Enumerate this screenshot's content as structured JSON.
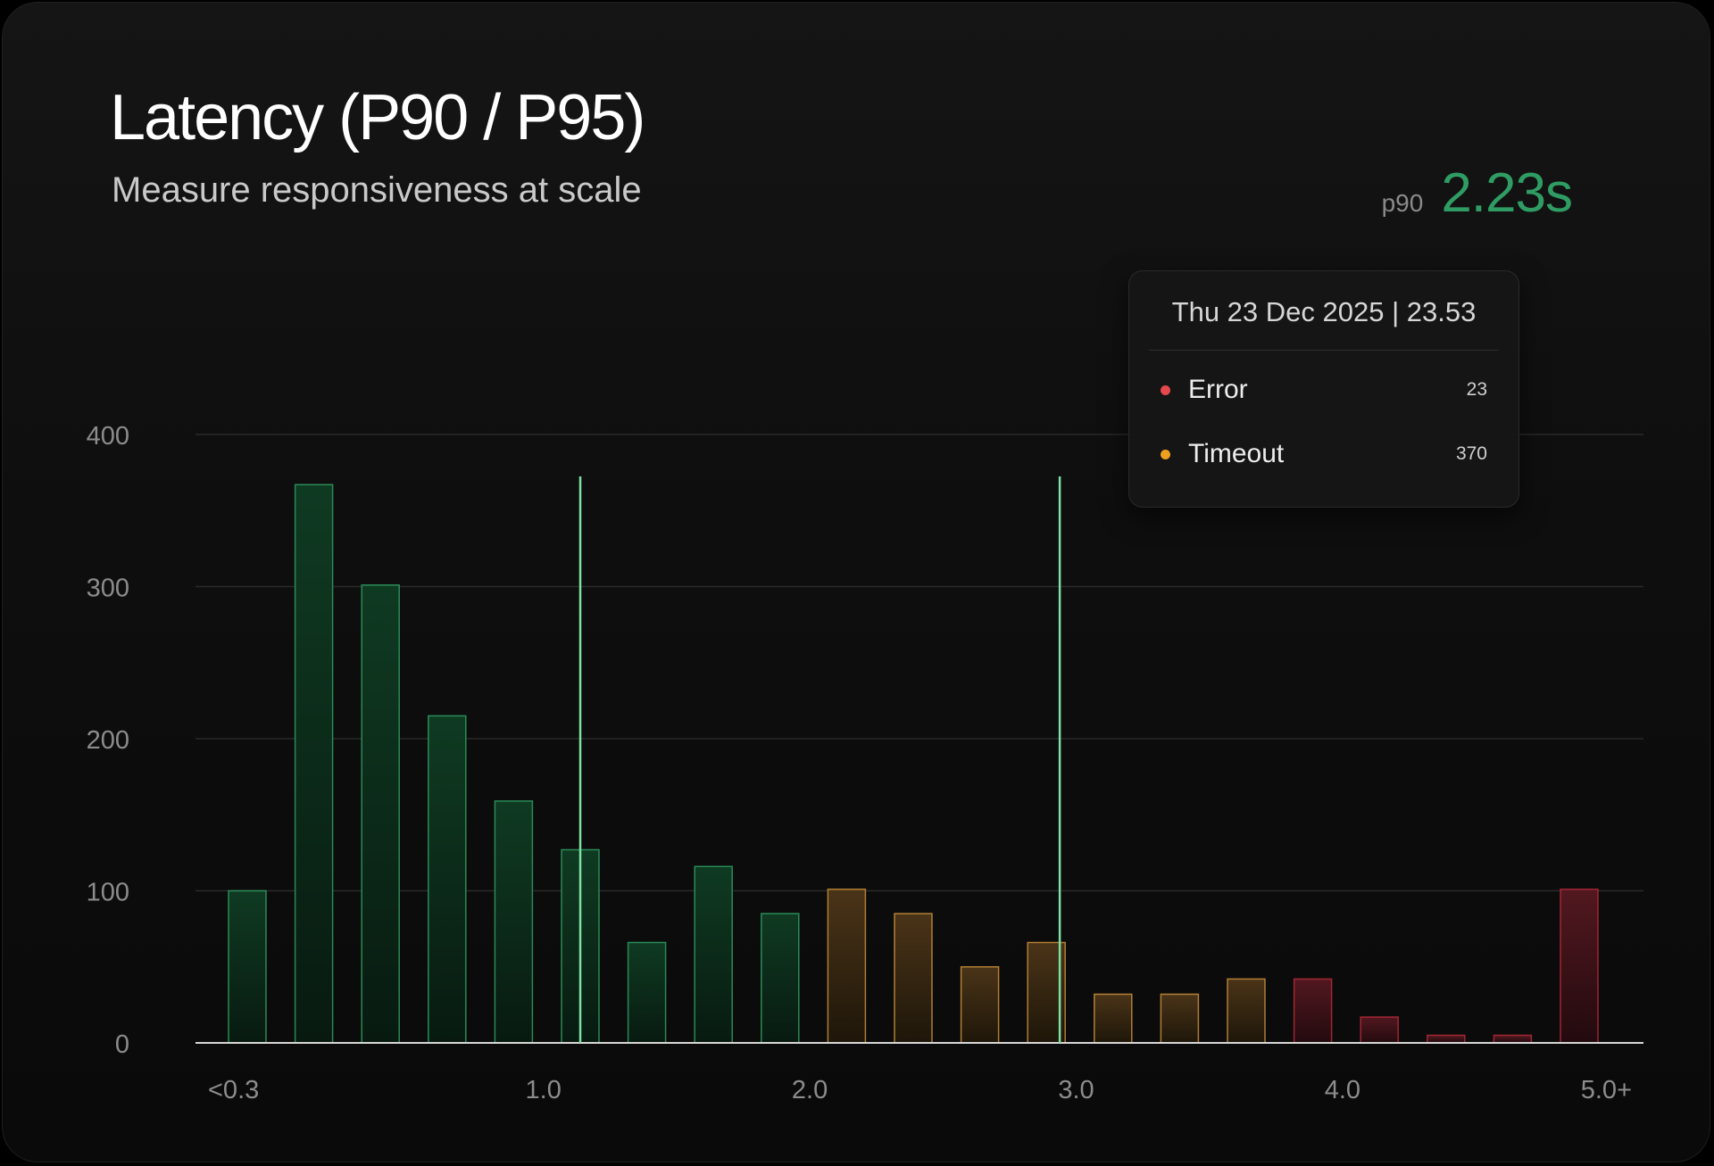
{
  "header": {
    "title": "Latency (P90 / P95)",
    "subtitle": "Measure responsiveness at scale",
    "metric_label": "p90",
    "metric_value": "2.23s",
    "metric_color": "#2f9d63"
  },
  "tooltip": {
    "date": "Thu 23 Dec 2025 | 23.53",
    "rows": [
      {
        "label": "Error",
        "value": "23",
        "color": "#e5484d"
      },
      {
        "label": "Timeout",
        "value": "370",
        "color": "#f0a020"
      }
    ]
  },
  "colors": {
    "good": "#2f9d63",
    "warn": "#d49a45",
    "bad": "#c0323f",
    "marker": "#7fe0a3"
  },
  "chart_data": {
    "type": "bar",
    "title": "Latency (P90 / P95)",
    "subtitle": "Measure responsiveness at scale",
    "xlabel": "",
    "ylabel": "",
    "ylim": [
      0,
      400
    ],
    "yticks": [
      0,
      100,
      200,
      300,
      400
    ],
    "grid": true,
    "x_tick_labels": [
      "<0.3",
      "1.0",
      "2.0",
      "3.0",
      "4.0",
      "5.0+"
    ],
    "x_tick_bins": [
      0.5,
      4.5,
      8.5,
      12.5,
      16.5,
      20.5
    ],
    "values": [
      100,
      367,
      301,
      215,
      159,
      127,
      66,
      116,
      85,
      101,
      85,
      50,
      66,
      32,
      32,
      42,
      42,
      17,
      5,
      5,
      101
    ],
    "status": [
      "good",
      "good",
      "good",
      "good",
      "good",
      "good",
      "good",
      "good",
      "good",
      "warn",
      "warn",
      "warn",
      "warn",
      "warn",
      "warn",
      "warn",
      "bad",
      "bad",
      "bad",
      "bad",
      "bad"
    ],
    "markers": [
      {
        "name": "p90",
        "bin_position": 5.0
      },
      {
        "name": "p95",
        "bin_position": 12.2
      }
    ]
  }
}
